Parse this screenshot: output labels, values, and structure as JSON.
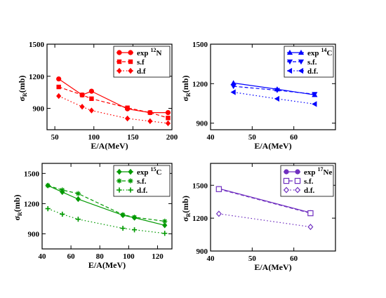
{
  "chart_data": [
    {
      "type": "line",
      "xlabel": "E/A(MeV)",
      "ylabel": "σR(mb)",
      "ylabel_main": "σ",
      "ylabel_sub": "R",
      "ylabel_unit": "(mb)",
      "xlim": [
        40,
        200
      ],
      "ylim": [
        700,
        1500
      ],
      "xticks": [
        "50",
        "100",
        "150",
        "200"
      ],
      "yticks": [
        "900",
        "1200",
        "1500"
      ],
      "legend_position": "top-right",
      "color": "#ff0000",
      "series": [
        {
          "name": "exp ¹²N",
          "label_text": "exp",
          "label_sup": "12",
          "label_el": "N",
          "marker": "circle",
          "dash": "solid",
          "x": [
            55,
            85,
            97,
            143,
            172,
            195
          ],
          "y": [
            1175,
            1025,
            1060,
            895,
            860,
            860
          ]
        },
        {
          "name": "s.f",
          "label_text": "s.f",
          "marker": "square",
          "dash": "dashed",
          "x": [
            55,
            85,
            97,
            143,
            172,
            195
          ],
          "y": [
            1100,
            1025,
            990,
            905,
            860,
            810
          ]
        },
        {
          "name": "d.f",
          "label_text": "d.f",
          "marker": "diamond",
          "dash": "dotted",
          "x": [
            55,
            85,
            97,
            143,
            172,
            195
          ],
          "y": [
            1015,
            915,
            880,
            805,
            780,
            760
          ]
        }
      ]
    },
    {
      "type": "line",
      "xlabel": "E/A(MeV)",
      "ylabel": "σR(mb)",
      "ylabel_main": "σ",
      "ylabel_sub": "R",
      "ylabel_unit": "(mb)",
      "xlim": [
        40,
        70
      ],
      "ylim": [
        850,
        1500
      ],
      "xticks": [
        "40",
        "50",
        "60"
      ],
      "yticks": [
        "900",
        "1200",
        "1500"
      ],
      "legend_position": "top-right",
      "color": "#0000ff",
      "series": [
        {
          "name": "exp ¹⁴C",
          "label_text": "exp",
          "label_sup": "14",
          "label_el": "C",
          "marker": "triangle-up",
          "dash": "solid",
          "x": [
            45.5,
            56,
            65
          ],
          "y": [
            1205,
            1158,
            1115
          ]
        },
        {
          "name": "s.f.",
          "label_text": "s.f.",
          "marker": "triangle-down",
          "dash": "dashed",
          "x": [
            45.5,
            56,
            65
          ],
          "y": [
            1180,
            1150,
            1120
          ]
        },
        {
          "name": "d.f.",
          "label_text": "d.f.",
          "marker": "triangle-left",
          "dash": "dotted",
          "x": [
            45.5,
            56,
            65
          ],
          "y": [
            1135,
            1085,
            1045
          ]
        }
      ]
    },
    {
      "type": "line",
      "xlabel": "E/A(MeV)",
      "ylabel": "σR(mb)",
      "ylabel_main": "σ",
      "ylabel_sub": "R",
      "ylabel_unit": "(mb)",
      "xlim": [
        40,
        130
      ],
      "ylim": [
        750,
        1600
      ],
      "xticks": [
        "40",
        "60",
        "80",
        "100",
        "120"
      ],
      "yticks": [
        "900",
        "1200",
        "1500"
      ],
      "legend_position": "top-right",
      "color": "#009900",
      "series": [
        {
          "name": "exp ¹⁵C",
          "label_text": "exp",
          "label_sup": "15",
          "label_el": "C",
          "marker": "diamond",
          "dash": "solid",
          "x": [
            44,
            54,
            65,
            96,
            104,
            125
          ],
          "y": [
            1380,
            1315,
            1245,
            1085,
            1060,
            985
          ]
        },
        {
          "name": "s.f.",
          "label_text": "s.f.",
          "marker": "asterisk",
          "dash": "dashed",
          "x": [
            44,
            54,
            65,
            96,
            104,
            125
          ],
          "y": [
            1380,
            1335,
            1300,
            1090,
            1065,
            1025
          ]
        },
        {
          "name": "d.f.",
          "label_text": "d.f.",
          "marker": "plus",
          "dash": "dotted",
          "x": [
            44,
            54,
            65,
            96,
            104,
            125
          ],
          "y": [
            1150,
            1095,
            1045,
            955,
            940,
            905
          ]
        }
      ]
    },
    {
      "type": "line",
      "xlabel": "E/A(MeV)",
      "ylabel": "σR(mb)",
      "ylabel_main": "σ",
      "ylabel_sub": "R",
      "ylabel_unit": "(mb)",
      "xlim": [
        40,
        70
      ],
      "ylim": [
        900,
        1700
      ],
      "xticks": [
        "40",
        "50",
        "60"
      ],
      "yticks": [
        "900",
        "1200",
        "1500"
      ],
      "legend_position": "top-right",
      "color": "#7030c0",
      "series": [
        {
          "name": "exp ¹⁷Ne",
          "label_text": "exp",
          "label_sup": "17",
          "label_el": "Ne",
          "marker": "circle",
          "dash": "solid",
          "x": [
            42,
            64
          ],
          "y": [
            1470,
            1250
          ]
        },
        {
          "name": "s.f.",
          "label_text": "s.f.",
          "marker": "square-open",
          "dash": "dashed",
          "x": [
            42,
            64
          ],
          "y": [
            1465,
            1245
          ]
        },
        {
          "name": "d.f.",
          "label_text": "d.f.",
          "marker": "diamond-open",
          "dash": "dotted",
          "x": [
            42,
            64
          ],
          "y": [
            1240,
            1120
          ]
        }
      ]
    }
  ]
}
